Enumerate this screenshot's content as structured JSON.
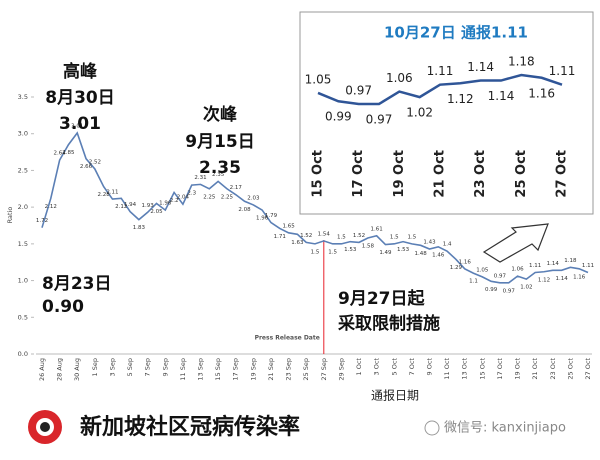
{
  "chart_data": [
    {
      "type": "line",
      "title": "新加坡社区冠病传染率",
      "x_label": "通报日期",
      "y_label": "Ratio",
      "categories": [
        "26 Aug",
        null,
        "28 Aug",
        null,
        "30 Aug",
        null,
        "1 Sep",
        null,
        "3 Sep",
        null,
        "5 Sep",
        null,
        "7 Sep",
        null,
        "9 Sep",
        null,
        "11 Sep",
        null,
        "13 Sep",
        null,
        "15 Sep",
        null,
        "17 Sep",
        null,
        "19 Sep",
        null,
        "21 Sep",
        null,
        "23 Sep",
        null,
        "25 Sep",
        null,
        "27 Sep",
        null,
        "29 Sep",
        null,
        "1 Oct",
        null,
        "3 Oct",
        null,
        "5 Oct",
        null,
        "7 Oct",
        null,
        "9 Oct",
        null,
        "11 Oct",
        null,
        "13 Oct",
        null,
        "15 Oct",
        null,
        "17 Oct",
        null,
        "19 Oct",
        null,
        "21 Oct",
        null,
        "23 Oct",
        null,
        "25 Oct",
        null,
        "27 Oct"
      ],
      "values": [
        1.72,
        2.12,
        2.64,
        2.85,
        3.01,
        2.66,
        2.52,
        2.28,
        2.11,
        2.12,
        1.94,
        1.83,
        1.93,
        2.05,
        1.96,
        2.2,
        2.04,
        2.3,
        2.31,
        2.25,
        2.35,
        2.25,
        2.17,
        2.08,
        2.03,
        1.96,
        1.79,
        1.71,
        1.65,
        1.63,
        1.52,
        1.5,
        1.54,
        1.5,
        1.5,
        1.53,
        1.52,
        1.58,
        1.61,
        1.49,
        1.5,
        1.53,
        1.5,
        1.48,
        1.43,
        1.46,
        1.4,
        1.29,
        1.16,
        1.1,
        1.05,
        0.99,
        0.97,
        0.97,
        1.06,
        1.02,
        1.11,
        1.12,
        1.14,
        1.14,
        1.18,
        1.16,
        1.11
      ],
      "color": "#5b7fb5",
      "ylim": [
        0,
        3.5
      ],
      "yticks": [
        {
          "value": 0,
          "label": "0.0"
        },
        0.5,
        {
          "value": 1,
          "label": "1.0"
        },
        1.5,
        {
          "value": 2,
          "label": "2.0"
        },
        2.5,
        {
          "value": 3,
          "label": "3.0"
        },
        3.5
      ],
      "marker_line": {
        "category": "27 Sep",
        "label": "Press Release Date",
        "color": "#e8212b"
      },
      "annotations": [
        "高峰",
        "8月30日",
        "3.01",
        "次峰",
        "9月15日",
        "2.35",
        "8月23日",
        "0.90",
        "9月27日起",
        "采取限制措施"
      ]
    },
    {
      "type": "line",
      "title": "10月27日 通报1.11",
      "categories": [
        "15 Oct",
        null,
        "17 Oct",
        null,
        "19 Oct",
        null,
        "21 Oct",
        null,
        "23 Oct",
        null,
        "25 Oct",
        null,
        "27 Oct"
      ],
      "values": [
        1.05,
        0.99,
        0.97,
        0.97,
        1.06,
        1.02,
        1.11,
        1.12,
        1.14,
        1.14,
        1.18,
        1.16,
        1.11
      ],
      "color": "#2f5597",
      "title_color": "#1f7bc1"
    }
  ],
  "footer": {
    "watermark": "微信号: kanxinjiapo"
  }
}
